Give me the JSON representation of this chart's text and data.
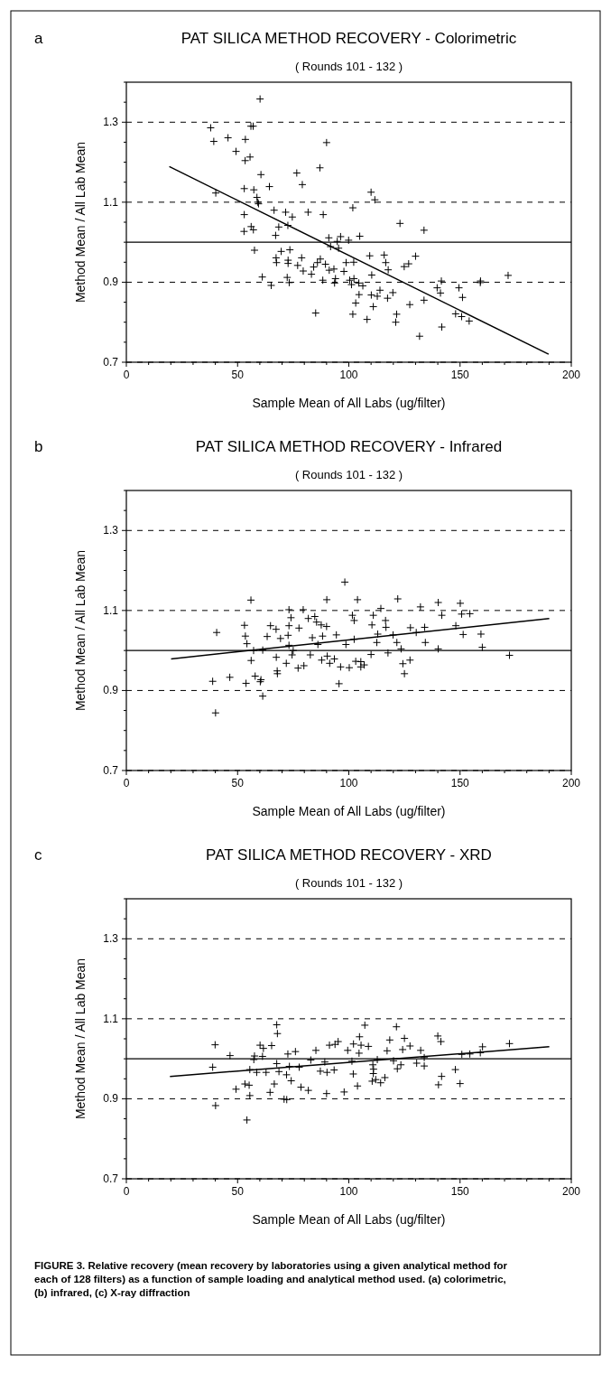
{
  "chart_data": [
    {
      "type": "scatter",
      "title": "PAT SILICA METHOD RECOVERY - Colorimetric",
      "subtitle": "( Rounds 101 - 132 )",
      "xlabel": "Sample Mean of All Labs (ug/filter)",
      "ylabel": "Method Mean / All Lab Mean",
      "annotations": [
        "a"
      ],
      "xlim": [
        0,
        200
      ],
      "ylim": [
        0.7,
        1.4
      ],
      "xticks": [
        0,
        {
          "value": 10,
          "label": null
        },
        {
          "value": 20,
          "label": null
        },
        {
          "value": 30,
          "label": null
        },
        {
          "value": 40,
          "label": null
        },
        50,
        {
          "value": 60,
          "label": null
        },
        {
          "value": 70,
          "label": null
        },
        {
          "value": 80,
          "label": null
        },
        {
          "value": 90,
          "label": null
        },
        100,
        {
          "value": 110,
          "label": null
        },
        {
          "value": 120,
          "label": null
        },
        {
          "value": 130,
          "label": null
        },
        {
          "value": 140,
          "label": null
        },
        150,
        {
          "value": 160,
          "label": null
        },
        {
          "value": 170,
          "label": null
        },
        {
          "value": 180,
          "label": null
        },
        {
          "value": 190,
          "label": null
        },
        200
      ],
      "yticks": [
        0.7,
        {
          "value": 0.75,
          "label": null
        },
        {
          "value": 0.8,
          "label": null
        },
        {
          "value": 0.85,
          "label": null
        },
        0.9,
        {
          "value": 0.95,
          "label": null
        },
        {
          "value": 1.0,
          "label": null
        },
        {
          "value": 1.05,
          "label": null
        },
        1.1,
        {
          "value": 1.15,
          "label": null
        },
        {
          "value": 1.2,
          "label": null
        },
        {
          "value": 1.25,
          "label": null
        },
        1.3,
        {
          "value": 1.35,
          "label": null
        },
        {
          "value": 1.4,
          "label": null
        }
      ],
      "grid": "y",
      "ref_lines": [
        {
          "axis": "y",
          "value": 1.0
        }
      ],
      "series": [
        {
          "marker": "cross",
          "color": "#000000",
          "x": [
            60.1,
            37.9,
            56,
            57,
            39.3,
            45.7,
            53.5,
            90,
            49.3,
            55.6,
            53.4,
            87,
            60.5,
            76.6,
            79.1,
            64.3,
            53,
            57.3,
            40.2,
            58.7,
            59.1,
            59.4,
            110,
            111.7,
            101.8,
            53,
            66.4,
            71.6,
            81.7,
            88.5,
            74.6,
            72.6,
            68.5,
            56.1,
            52.9,
            57.1,
            67.1,
            123,
            133.8,
            91,
            96.3,
            99.9,
            104.9,
            94.8,
            57.6,
            69.6,
            73.5,
            67.3,
            67.5,
            72.7,
            78.8,
            72.7,
            77,
            79.5,
            83.2,
            84.2,
            85.9,
            87.2,
            89.5,
            91.2,
            93.3,
            91.8,
            95.4,
            97.8,
            98.8,
            102.2,
            109.4,
            115.9,
            116.6,
            117.7,
            110.3,
            124.9,
            126.9,
            130,
            61.1,
            65.1,
            72.3,
            73.2,
            88.3,
            94,
            93.6,
            100.4,
            102.3,
            101.2,
            104.5,
            106.3,
            104.6,
            110.1,
            112.8,
            114,
            117.4,
            119.8,
            103.1,
            111,
            85.1,
            101.8,
            108.2,
            121.5,
            121.1,
            127.4,
            133.8,
            131.8,
            139.7,
            141.2,
            141.6,
            141.8,
            149.5,
            151.1,
            148,
            150.7,
            154.1,
            159.1,
            159.2,
            171.6
          ],
          "values": [
            1.358,
            1.286,
            1.29,
            1.29,
            1.252,
            1.261,
            1.257,
            1.249,
            1.227,
            1.213,
            1.204,
            1.186,
            1.169,
            1.173,
            1.144,
            1.139,
            1.134,
            1.131,
            1.123,
            1.112,
            1.1,
            1.096,
            1.125,
            1.106,
            1.086,
            1.069,
            1.08,
            1.075,
            1.075,
            1.069,
            1.063,
            1.042,
            1.038,
            1.039,
            1.027,
            1.031,
            1.017,
            1.047,
            1.03,
            1.011,
            1.014,
            1.005,
            1.015,
            1.002,
            0.98,
            0.977,
            0.981,
            0.961,
            0.949,
            0.955,
            0.961,
            0.947,
            0.942,
            0.928,
            0.92,
            0.938,
            0.949,
            0.958,
            0.945,
            0.93,
            0.933,
            0.989,
            0.985,
            0.927,
            0.949,
            0.95,
            0.966,
            0.968,
            0.949,
            0.931,
            0.918,
            0.939,
            0.946,
            0.965,
            0.913,
            0.892,
            0.912,
            0.899,
            0.905,
            0.909,
            0.898,
            0.905,
            0.909,
            0.894,
            0.898,
            0.891,
            0.869,
            0.868,
            0.865,
            0.88,
            0.86,
            0.874,
            0.848,
            0.839,
            0.823,
            0.82,
            0.807,
            0.82,
            0.8,
            0.844,
            0.855,
            0.765,
            0.886,
            0.873,
            0.903,
            0.788,
            0.886,
            0.862,
            0.821,
            0.814,
            0.803,
            0.899,
            0.903,
            0.917
          ]
        },
        {
          "type": "line",
          "marker": "none",
          "color": "#000000",
          "x": [
            19.3,
            189.8
          ],
          "values": [
            1.189,
            0.72
          ]
        }
      ]
    },
    {
      "type": "scatter",
      "title": "PAT SILICA METHOD RECOVERY - Infrared",
      "subtitle": "( Rounds 101 - 132 )",
      "xlabel": "Sample Mean of All Labs (ug/filter)",
      "ylabel": "Method Mean / All Lab Mean",
      "annotations": [
        "b"
      ],
      "xlim": [
        0,
        200
      ],
      "ylim": [
        0.7,
        1.4
      ],
      "xticks": [
        0,
        {
          "value": 10,
          "label": null
        },
        {
          "value": 20,
          "label": null
        },
        {
          "value": 30,
          "label": null
        },
        {
          "value": 40,
          "label": null
        },
        50,
        {
          "value": 60,
          "label": null
        },
        {
          "value": 70,
          "label": null
        },
        {
          "value": 80,
          "label": null
        },
        {
          "value": 90,
          "label": null
        },
        100,
        {
          "value": 110,
          "label": null
        },
        {
          "value": 120,
          "label": null
        },
        {
          "value": 130,
          "label": null
        },
        {
          "value": 140,
          "label": null
        },
        150,
        {
          "value": 160,
          "label": null
        },
        {
          "value": 170,
          "label": null
        },
        {
          "value": 180,
          "label": null
        },
        {
          "value": 190,
          "label": null
        },
        200
      ],
      "yticks": [
        0.7,
        {
          "value": 0.75,
          "label": null
        },
        {
          "value": 0.8,
          "label": null
        },
        {
          "value": 0.85,
          "label": null
        },
        0.9,
        {
          "value": 0.95,
          "label": null
        },
        {
          "value": 1.0,
          "label": null
        },
        {
          "value": 1.05,
          "label": null
        },
        1.1,
        {
          "value": 1.15,
          "label": null
        },
        {
          "value": 1.2,
          "label": null
        },
        {
          "value": 1.25,
          "label": null
        },
        1.3,
        {
          "value": 1.35,
          "label": null
        },
        {
          "value": 1.4,
          "label": null
        }
      ],
      "grid": "y",
      "ref_lines": [
        {
          "axis": "y",
          "value": 1.0
        }
      ],
      "series": [
        {
          "marker": "cross",
          "color": "#000000",
          "x": [
            98.2,
            56,
            90.1,
            103.9,
            122,
            140.2,
            150.1,
            132.2,
            114.4,
            73.1,
            79.5,
            141.8,
            150.7,
            154.4,
            101.6,
            111,
            74,
            81.8,
            84.7,
            85.5,
            87.6,
            90,
            102.4,
            116.5,
            53.1,
            64.8,
            73.1,
            40.6,
            53.5,
            67.3,
            63.3,
            69.3,
            77.6,
            110.4,
            116.7,
            127.7,
            134.1,
            148.1,
            151.4,
            159.4,
            160,
            130.3,
            113,
            119.9,
            94.4,
            88.2,
            83.6,
            72.7,
            102.4,
            98.7,
            112.6,
            121.6,
            134.4,
            54.2,
            73.1,
            86.1,
            57.2,
            61.3,
            75,
            123.5,
            140.2,
            117.6,
            110,
            82.7,
            74.5,
            56.1,
            67.4,
            71.9,
            87.8,
            90.3,
            91.4,
            93.5,
            103.1,
            105.4,
            105.4,
            106.9,
            96.3,
            100.2,
            77.2,
            79.8,
            124.3,
            127.5,
            125,
            67.8,
            67.9,
            57.9,
            60.5,
            60.2,
            46.5,
            38.8,
            53.8,
            95.6,
            61.3,
            40.1,
            172.2
          ],
          "values": [
            1.171,
            1.126,
            1.127,
            1.127,
            1.129,
            1.12,
            1.118,
            1.109,
            1.105,
            1.102,
            1.102,
            1.088,
            1.091,
            1.092,
            1.088,
            1.088,
            1.082,
            1.08,
            1.085,
            1.071,
            1.064,
            1.06,
            1.075,
            1.075,
            1.063,
            1.062,
            1.062,
            1.045,
            1.036,
            1.053,
            1.035,
            1.03,
            1.056,
            1.064,
            1.058,
            1.057,
            1.058,
            1.062,
            1.04,
            1.041,
            1.008,
            1.045,
            1.041,
            1.039,
            1.039,
            1.036,
            1.032,
            1.038,
            1.028,
            1.015,
            1.02,
            1.02,
            1.02,
            1.017,
            1.013,
            1.015,
            1.0,
            1.001,
            1.0,
            1.004,
            1.004,
            0.994,
            0.99,
            0.989,
            0.989,
            0.975,
            0.983,
            0.968,
            0.976,
            0.986,
            0.968,
            0.979,
            0.973,
            0.972,
            0.959,
            0.964,
            0.959,
            0.957,
            0.956,
            0.962,
            0.967,
            0.976,
            0.942,
            0.949,
            0.942,
            0.936,
            0.927,
            0.922,
            0.933,
            0.923,
            0.918,
            0.917,
            0.886,
            0.844,
            0.988
          ]
        },
        {
          "type": "line",
          "marker": "none",
          "color": "#000000",
          "x": [
            20.1,
            190.1
          ],
          "values": [
            0.979,
            1.08
          ]
        }
      ]
    },
    {
      "type": "scatter",
      "title": "PAT SILICA METHOD RECOVERY - XRD",
      "subtitle": "( Rounds 101 - 132 )",
      "xlabel": "Sample Mean of All Labs (ug/filter)",
      "ylabel": "Method Mean / All Lab Mean",
      "annotations": [
        "c",
        "FIGURE 3. Relative recovery (mean recovery by laboratories using a given analytical method for each of 128 filters) as a function of sample loading and analytical method used. (a) colorimetric, (b) infrared, (c) X-ray diffraction"
      ],
      "xlim": [
        0,
        200
      ],
      "ylim": [
        0.7,
        1.4
      ],
      "xticks": [
        0,
        {
          "value": 10,
          "label": null
        },
        {
          "value": 20,
          "label": null
        },
        {
          "value": 30,
          "label": null
        },
        {
          "value": 40,
          "label": null
        },
        50,
        {
          "value": 60,
          "label": null
        },
        {
          "value": 70,
          "label": null
        },
        {
          "value": 80,
          "label": null
        },
        {
          "value": 90,
          "label": null
        },
        100,
        {
          "value": 110,
          "label": null
        },
        {
          "value": 120,
          "label": null
        },
        {
          "value": 130,
          "label": null
        },
        {
          "value": 140,
          "label": null
        },
        150,
        {
          "value": 160,
          "label": null
        },
        {
          "value": 170,
          "label": null
        },
        {
          "value": 180,
          "label": null
        },
        {
          "value": 190,
          "label": null
        },
        200
      ],
      "yticks": [
        0.7,
        {
          "value": 0.75,
          "label": null
        },
        {
          "value": 0.8,
          "label": null
        },
        {
          "value": 0.85,
          "label": null
        },
        0.9,
        {
          "value": 0.95,
          "label": null
        },
        {
          "value": 1.0,
          "label": null
        },
        {
          "value": 1.05,
          "label": null
        },
        1.1,
        {
          "value": 1.15,
          "label": null
        },
        {
          "value": 1.2,
          "label": null
        },
        {
          "value": 1.25,
          "label": null
        },
        1.3,
        {
          "value": 1.35,
          "label": null
        },
        {
          "value": 1.4,
          "label": null
        }
      ],
      "grid": "y",
      "ref_lines": [
        {
          "axis": "y",
          "value": 1.0
        }
      ],
      "series": [
        {
          "marker": "cross",
          "color": "#000000",
          "x": [
            107.2,
            121.4,
            67.6,
            67.9,
            125,
            140,
            141.4,
            104.8,
            39.9,
            60.1,
            61.6,
            65.3,
            91.3,
            93.8,
            95.2,
            102.1,
            105.5,
            108.8,
            118.4,
            127.5,
            132.3,
            160.1,
            172.2,
            46.6,
            57.6,
            61.2,
            72.6,
            76,
            85.2,
            99.5,
            104.6,
            117.2,
            124.2,
            150.8,
            154.4,
            159.1,
            57.3,
            82.9,
            89.2,
            101.4,
            112.8,
            120.1,
            133.9,
            38.8,
            67.6,
            73.3,
            77.7,
            110.8,
            111.1,
            123.4,
            130.5,
            133.9,
            55.5,
            58.6,
            62.8,
            68.6,
            72,
            87.2,
            90.2,
            93.4,
            102,
            121.8,
            147.9,
            141.7,
            111,
            74.1,
            112.1,
            114.3,
            116.2,
            110.5,
            53.3,
            55.2,
            66.5,
            103.9,
            140.3,
            150,
            49.3,
            78.5,
            81.8,
            64.6,
            90,
            97.9,
            55.5,
            70.9,
            72.1,
            40.1,
            54.2
          ],
          "values": [
            1.084,
            1.08,
            1.085,
            1.063,
            1.051,
            1.057,
            1.043,
            1.055,
            1.035,
            1.034,
            1.026,
            1.033,
            1.034,
            1.036,
            1.043,
            1.037,
            1.034,
            1.031,
            1.047,
            1.032,
            1.021,
            1.03,
            1.038,
            1.008,
            1.007,
            1.006,
            1.012,
            1.018,
            1.021,
            1.021,
            1.014,
            1.02,
            1.023,
            1.011,
            1.012,
            1.015,
            0.998,
            0.997,
            0.992,
            0.994,
            0.998,
            0.995,
            1.003,
            0.979,
            0.988,
            0.981,
            0.979,
            0.985,
            0.974,
            0.985,
            0.989,
            0.982,
            0.973,
            0.966,
            0.966,
            0.968,
            0.96,
            0.969,
            0.966,
            0.972,
            0.962,
            0.975,
            0.973,
            0.956,
            0.963,
            0.945,
            0.948,
            0.94,
            0.953,
            0.944,
            0.937,
            0.934,
            0.937,
            0.932,
            0.935,
            0.938,
            0.924,
            0.929,
            0.921,
            0.916,
            0.913,
            0.917,
            0.908,
            0.899,
            0.898,
            0.883,
            0.847
          ]
        },
        {
          "type": "line",
          "marker": "none",
          "color": "#000000",
          "x": [
            19.6,
            190.1
          ],
          "values": [
            0.956,
            1.03
          ]
        }
      ]
    }
  ]
}
